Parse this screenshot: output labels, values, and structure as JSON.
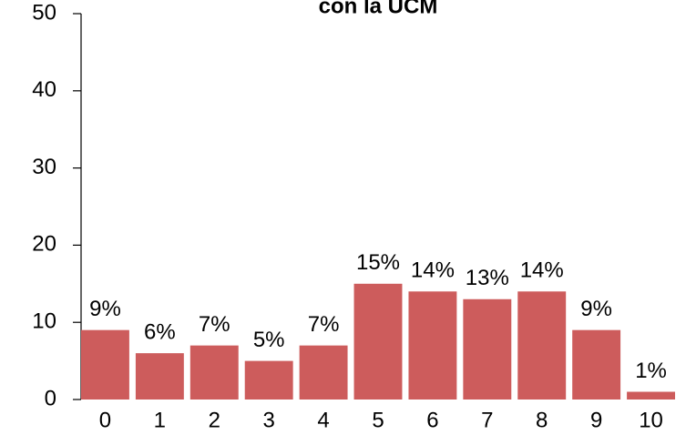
{
  "chart_data": {
    "type": "bar",
    "title": "con la UCM",
    "categories": [
      "0",
      "1",
      "2",
      "3",
      "4",
      "5",
      "6",
      "7",
      "8",
      "9",
      "10"
    ],
    "values": [
      9,
      6,
      7,
      5,
      7,
      15,
      14,
      13,
      14,
      9,
      1
    ],
    "value_labels": [
      "9%",
      "6%",
      "7%",
      "5%",
      "7%",
      "15%",
      "14%",
      "13%",
      "14%",
      "9%",
      "1%"
    ],
    "color": "#cd5c5c",
    "ylim": [
      0,
      50
    ],
    "yticks": [
      0,
      10,
      20,
      30,
      40,
      50
    ],
    "grid": false
  }
}
